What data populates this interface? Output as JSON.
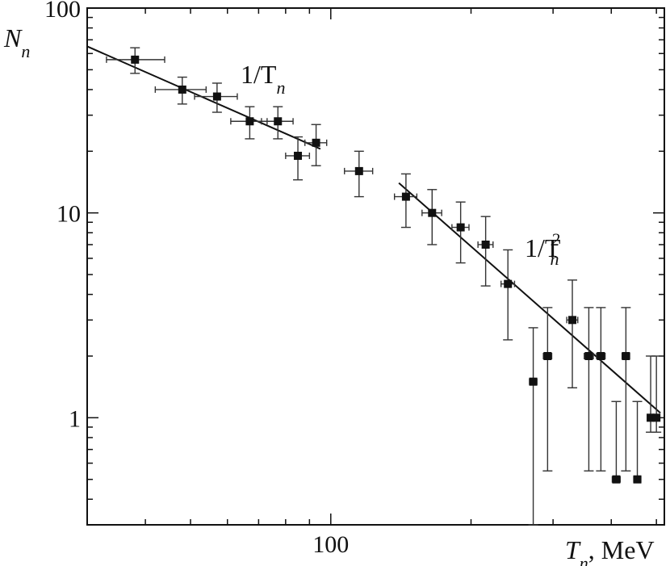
{
  "chart_data": {
    "type": "scatter",
    "log_x": true,
    "log_y": true,
    "xlim": [
      30,
      520
    ],
    "ylim": [
      0.3,
      100
    ],
    "x_ticks": [
      {
        "value": 100,
        "label": "100"
      }
    ],
    "y_ticks": [
      {
        "value": 1,
        "label": "1"
      },
      {
        "value": 10,
        "label": "10"
      },
      {
        "value": 100,
        "label": "100"
      }
    ],
    "xlabel_main": "T",
    "xlabel_sub": "n",
    "xlabel_unit": ", MeV",
    "ylabel_main": "N",
    "ylabel_sub": "n",
    "grid": false,
    "points": [
      {
        "x": 38,
        "y": 56,
        "xerr": [
          5,
          6
        ],
        "yerr": [
          8,
          8
        ]
      },
      {
        "x": 48,
        "y": 40,
        "xerr": [
          6,
          6
        ],
        "yerr": [
          6,
          6
        ]
      },
      {
        "x": 57,
        "y": 37,
        "xerr": [
          6,
          6
        ],
        "yerr": [
          6,
          6
        ]
      },
      {
        "x": 67,
        "y": 28,
        "xerr": [
          6,
          6
        ],
        "yerr": [
          5,
          5
        ]
      },
      {
        "x": 77,
        "y": 28,
        "xerr": [
          6,
          6
        ],
        "yerr": [
          5,
          5
        ]
      },
      {
        "x": 85,
        "y": 19,
        "xerr": [
          5,
          5
        ],
        "yerr": [
          4.5,
          4.5
        ]
      },
      {
        "x": 93,
        "y": 22,
        "xerr": [
          5,
          5
        ],
        "yerr": [
          5,
          5
        ]
      },
      {
        "x": 115,
        "y": 16,
        "xerr": [
          8,
          8
        ],
        "yerr": [
          4,
          4
        ]
      },
      {
        "x": 145,
        "y": 12,
        "xerr": [
          8,
          8
        ],
        "yerr": [
          3.5,
          3.5
        ]
      },
      {
        "x": 165,
        "y": 10,
        "xerr": [
          8,
          8
        ],
        "yerr": [
          3,
          3
        ]
      },
      {
        "x": 190,
        "y": 8.5,
        "xerr": [
          8,
          8
        ],
        "yerr": [
          2.8,
          2.8
        ]
      },
      {
        "x": 215,
        "y": 7,
        "xerr": [
          8,
          8
        ],
        "yerr": [
          2.6,
          2.6
        ]
      },
      {
        "x": 240,
        "y": 4.5,
        "xerr": [
          8,
          8
        ],
        "yerr": [
          2.1,
          2.1
        ]
      },
      {
        "x": 272,
        "y": 1.5,
        "xerr": [
          5,
          5
        ],
        "yerr": [
          1.2,
          1.25
        ]
      },
      {
        "x": 292,
        "y": 2,
        "xerr": [
          6,
          6
        ],
        "yerr": [
          1.45,
          1.45
        ]
      },
      {
        "x": 330,
        "y": 3,
        "xerr": [
          9,
          9
        ],
        "yerr": [
          1.6,
          1.7
        ]
      },
      {
        "x": 358,
        "y": 2,
        "xerr": [
          8,
          8
        ],
        "yerr": [
          1.45,
          1.45
        ]
      },
      {
        "x": 380,
        "y": 2,
        "xerr": [
          8,
          8
        ],
        "yerr": [
          1.45,
          1.45
        ]
      },
      {
        "x": 410,
        "y": 0.5,
        "xerr": [
          8,
          8
        ],
        "yerr": [
          0.0,
          0.7
        ]
      },
      {
        "x": 430,
        "y": 2,
        "xerr": [
          8,
          8
        ],
        "yerr": [
          1.45,
          1.45
        ]
      },
      {
        "x": 455,
        "y": 0.5,
        "xerr": [
          8,
          8
        ],
        "yerr": [
          0.0,
          0.7
        ]
      },
      {
        "x": 486,
        "y": 1,
        "xerr": [
          6,
          6
        ],
        "yerr": [
          0.15,
          1.0
        ]
      },
      {
        "x": 500,
        "y": 1,
        "xerr": [
          6,
          6
        ],
        "yerr": [
          0.15,
          1.0
        ]
      }
    ],
    "fits": [
      {
        "label_main": "1/T",
        "label_sub": "n",
        "label_sup": "",
        "x_from": 30,
        "x_to": 95,
        "exponent": -1,
        "y_at_from": 65
      },
      {
        "label_main": "1/T",
        "label_sub": "n",
        "label_sup": "2",
        "x_from": 140,
        "x_to": 510,
        "exponent": -2,
        "y_at_from": 14
      }
    ]
  }
}
